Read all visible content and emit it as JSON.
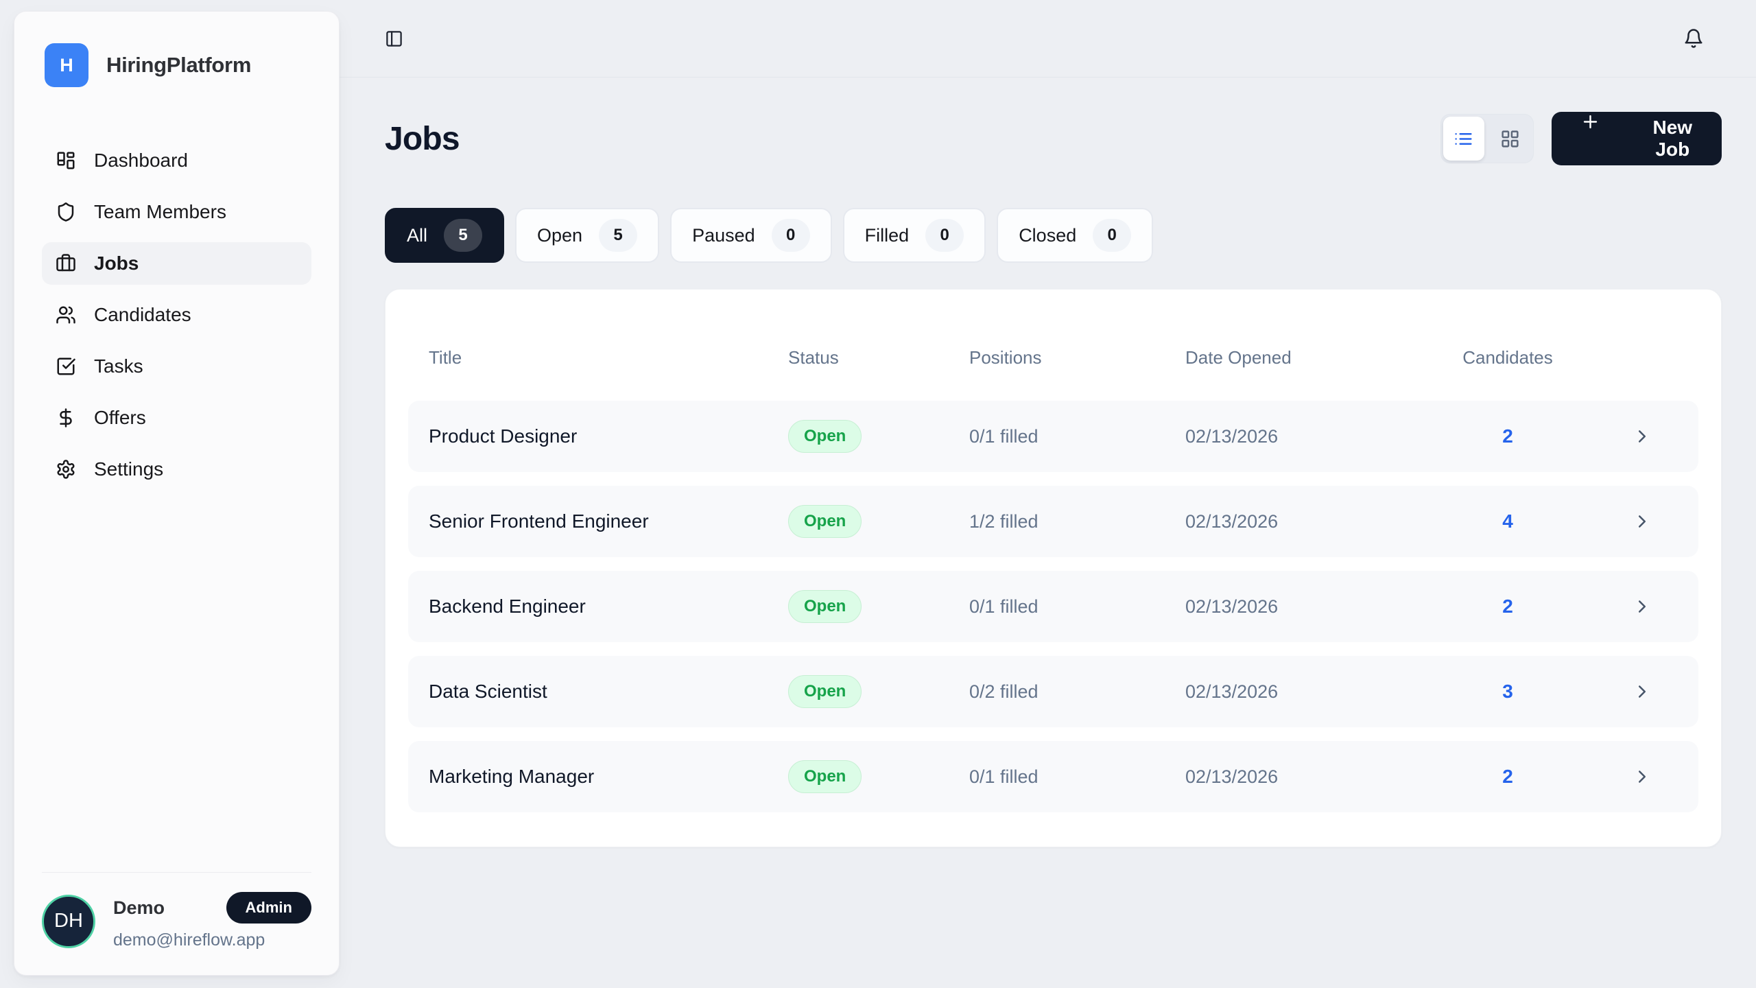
{
  "brand": {
    "logo_letter": "H",
    "name": "HiringPlatform"
  },
  "sidebar": {
    "nav": [
      {
        "label": "Dashboard",
        "icon": "dashboard",
        "active": false
      },
      {
        "label": "Team Members",
        "icon": "shield",
        "active": false
      },
      {
        "label": "Jobs",
        "icon": "briefcase",
        "active": true
      },
      {
        "label": "Candidates",
        "icon": "users",
        "active": false
      },
      {
        "label": "Tasks",
        "icon": "check-square",
        "active": false
      },
      {
        "label": "Offers",
        "icon": "dollar-sign",
        "active": false
      },
      {
        "label": "Settings",
        "icon": "gear",
        "active": false
      }
    ],
    "user": {
      "initials": "DH",
      "name": "Demo",
      "role": "Admin",
      "email": "demo@hireflow.app"
    }
  },
  "page": {
    "title": "Jobs",
    "actions": {
      "new_job_label": "New Job"
    },
    "view_modes": [
      {
        "icon": "list",
        "active": true
      },
      {
        "icon": "grid",
        "active": false
      }
    ],
    "filters": [
      {
        "label": "All",
        "count": "5",
        "active": true
      },
      {
        "label": "Open",
        "count": "5",
        "active": false
      },
      {
        "label": "Paused",
        "count": "0",
        "active": false
      },
      {
        "label": "Filled",
        "count": "0",
        "active": false
      },
      {
        "label": "Closed",
        "count": "0",
        "active": false
      }
    ],
    "table": {
      "columns": [
        "Title",
        "Status",
        "Positions",
        "Date Opened",
        "Candidates"
      ],
      "rows": [
        {
          "title": "Product Designer",
          "status": "Open",
          "positions": "0/1 filled",
          "date_opened": "02/13/2026",
          "candidates": "2"
        },
        {
          "title": "Senior Frontend Engineer",
          "status": "Open",
          "positions": "1/2 filled",
          "date_opened": "02/13/2026",
          "candidates": "4"
        },
        {
          "title": "Backend Engineer",
          "status": "Open",
          "positions": "0/1 filled",
          "date_opened": "02/13/2026",
          "candidates": "2"
        },
        {
          "title": "Data Scientist",
          "status": "Open",
          "positions": "0/2 filled",
          "date_opened": "02/13/2026",
          "candidates": "3"
        },
        {
          "title": "Marketing Manager",
          "status": "Open",
          "positions": "0/1 filled",
          "date_opened": "02/13/2026",
          "candidates": "2"
        }
      ]
    }
  },
  "colors": {
    "accent_blue": "#3b82f6",
    "link_blue": "#2563eb",
    "dark_navy": "#101828",
    "status_open_bg": "#dcfce7",
    "status_open_text": "#16a34a",
    "avatar_ring": "#4fd1a5"
  }
}
